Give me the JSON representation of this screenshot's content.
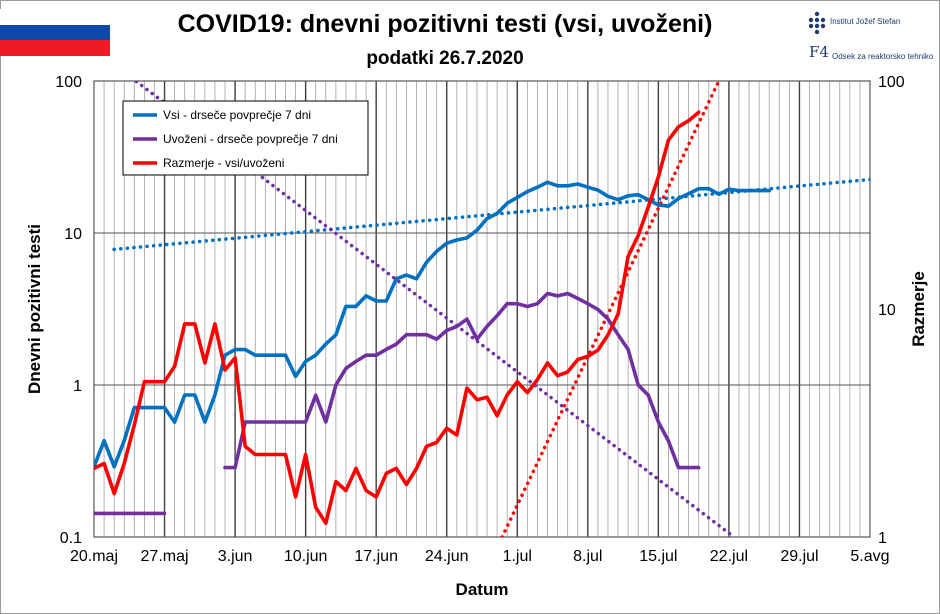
{
  "header": {
    "title": "COVID19: dnevni pozitivni testi (vsi, uvoženi)",
    "subtitle": "podatki 26.7.2020",
    "logo_line1": "Institut Jožef Stefan",
    "logo_line2": "Odsek za reaktorsko tehniko",
    "logo_mark": "F4",
    "flag_colors": [
      "#ffffff",
      "#0d4aa8",
      "#ed1c24"
    ]
  },
  "chart_data": {
    "type": "line",
    "title": "COVID19: dnevni pozitivni testi (vsi, uvoženi)",
    "subtitle": "podatki 26.7.2020",
    "xlabel": "Datum",
    "ylabel": "Dnevni pozitivni testi",
    "y2label": "Razmerje",
    "x_start": "20.maj",
    "x_range_days": [
      0,
      77
    ],
    "y_scale": "log",
    "ylim": [
      0.1,
      100
    ],
    "y2lim": [
      1,
      100
    ],
    "x_ticks": [
      {
        "day": 0,
        "label": "20.maj"
      },
      {
        "day": 7,
        "label": "27.maj"
      },
      {
        "day": 14,
        "label": "3.jun"
      },
      {
        "day": 21,
        "label": "10.jun"
      },
      {
        "day": 28,
        "label": "17.jun"
      },
      {
        "day": 35,
        "label": "24.jun"
      },
      {
        "day": 42,
        "label": "1.jul"
      },
      {
        "day": 49,
        "label": "8.jul"
      },
      {
        "day": 56,
        "label": "15.jul"
      },
      {
        "day": 63,
        "label": "22.jul"
      },
      {
        "day": 70,
        "label": "29.jul"
      },
      {
        "day": 77,
        "label": "5.avg"
      }
    ],
    "y_ticks": [
      {
        "value": 0.1,
        "label": "0.1"
      },
      {
        "value": 1,
        "label": "1"
      },
      {
        "value": 10,
        "label": "10"
      },
      {
        "value": 100,
        "label": "100"
      }
    ],
    "y2_ticks": [
      {
        "value": 1,
        "label": "1"
      },
      {
        "value": 10,
        "label": "10"
      },
      {
        "value": 100,
        "label": "100"
      }
    ],
    "legend": {
      "position": "top-left",
      "entries": [
        "Vsi - drseče povprečje 7 dni",
        "Uvoženi - drseče povprečje 7 dni",
        "Razmerje - vsi/uvoženi"
      ]
    },
    "series": [
      {
        "name": "Vsi - drseče povprečje 7 dni",
        "axis": "left",
        "color": "#0070c0",
        "x": [
          0,
          1,
          2,
          3,
          4,
          5,
          6,
          7,
          8,
          9,
          10,
          11,
          12,
          13,
          14,
          15,
          16,
          17,
          18,
          19,
          20,
          21,
          22,
          23,
          24,
          25,
          26,
          27,
          28,
          29,
          30,
          31,
          32,
          33,
          34,
          35,
          36,
          37,
          38,
          39,
          40,
          41,
          42,
          43,
          44,
          45,
          46,
          47,
          48,
          49,
          50,
          51,
          52,
          53,
          54,
          55,
          56,
          57,
          58,
          59,
          60,
          61,
          62,
          63,
          64,
          65,
          66,
          67
        ],
        "values": [
          0.29,
          0.43,
          0.29,
          0.43,
          0.71,
          0.71,
          0.71,
          0.71,
          0.57,
          0.86,
          0.86,
          0.57,
          0.86,
          1.57,
          1.71,
          1.71,
          1.57,
          1.57,
          1.57,
          1.57,
          1.14,
          1.43,
          1.57,
          1.86,
          2.14,
          3.29,
          3.29,
          3.86,
          3.57,
          3.57,
          5.0,
          5.29,
          5.0,
          6.43,
          7.57,
          8.57,
          9.0,
          9.29,
          10.43,
          12.43,
          13.43,
          15.71,
          17.14,
          18.71,
          20.0,
          21.57,
          20.43,
          20.43,
          21.0,
          20.0,
          19.14,
          17.43,
          16.57,
          17.57,
          17.86,
          16.57,
          15.29,
          15.0,
          16.86,
          18.14,
          19.57,
          19.57,
          18.0,
          19.43,
          19.0,
          19.0,
          19.0,
          19.0
        ]
      },
      {
        "name": "Uvoženi - drseče povprečje 7 dni",
        "axis": "left",
        "color": "#7030a0",
        "segments": [
          {
            "x": [
              0,
              7
            ],
            "values": [
              0.143,
              0.143
            ]
          },
          {
            "x": [
              13,
              14,
              15,
              16,
              17,
              18,
              19,
              20,
              21,
              22,
              23,
              24,
              25,
              26,
              27,
              28,
              29,
              30,
              31,
              32,
              33,
              34,
              35,
              36,
              37,
              38,
              39,
              40,
              41,
              42,
              43,
              44,
              45,
              46,
              47,
              48,
              49,
              50,
              51,
              52,
              53,
              54,
              55,
              56,
              57,
              58,
              59,
              60
            ],
            "values": [
              0.286,
              0.286,
              0.571,
              0.571,
              0.571,
              0.571,
              0.571,
              0.571,
              0.571,
              0.857,
              0.571,
              1.0,
              1.286,
              1.429,
              1.571,
              1.571,
              1.714,
              1.857,
              2.143,
              2.143,
              2.143,
              2.0,
              2.286,
              2.429,
              2.714,
              2.0,
              2.429,
              2.857,
              3.429,
              3.429,
              3.286,
              3.429,
              4.0,
              3.857,
              4.0,
              3.714,
              3.429,
              3.143,
              2.714,
              2.143,
              1.714,
              1.0,
              0.857,
              0.571,
              0.429,
              0.286,
              0.286,
              0.286
            ]
          }
        ]
      },
      {
        "name": "Razmerje - vsi/uvoženi",
        "axis": "right",
        "color": "#ff0000",
        "x": [
          0,
          1,
          2,
          3,
          4,
          5,
          6,
          7,
          8,
          9,
          10,
          11,
          12,
          13,
          14,
          15,
          16,
          17,
          18,
          19,
          20,
          21,
          22,
          23,
          24,
          25,
          26,
          27,
          28,
          29,
          30,
          31,
          32,
          33,
          34,
          35,
          36,
          37,
          38,
          39,
          40,
          41,
          42,
          43,
          44,
          45,
          46,
          47,
          48,
          49,
          50,
          51,
          52,
          53,
          54,
          55,
          56,
          57,
          58,
          59,
          60
        ],
        "values": [
          2.0,
          2.1,
          1.55,
          2.1,
          3.1,
          4.8,
          4.8,
          4.8,
          5.6,
          8.6,
          8.6,
          5.8,
          8.6,
          5.4,
          6.1,
          2.5,
          2.3,
          2.3,
          2.3,
          2.3,
          1.5,
          2.3,
          1.35,
          1.15,
          1.75,
          1.6,
          2.0,
          1.6,
          1.5,
          1.9,
          2.0,
          1.7,
          2.0,
          2.5,
          2.6,
          3.0,
          2.8,
          4.5,
          4.0,
          4.1,
          3.4,
          4.2,
          4.8,
          4.3,
          4.9,
          5.8,
          5.1,
          5.3,
          6.0,
          6.2,
          6.6,
          7.7,
          9.5,
          17,
          21,
          28,
          38,
          55,
          63,
          67,
          73
        ]
      }
    ],
    "trendlines": [
      {
        "name": "trend vsi",
        "axis": "left",
        "color": "#0070c0",
        "x": [
          2,
          77
        ],
        "values": [
          7.8,
          22.5
        ]
      },
      {
        "name": "trend uvoženi",
        "axis": "left",
        "color": "#7030a0",
        "x": [
          -1,
          63.5
        ],
        "values": [
          182,
          0.1
        ]
      },
      {
        "name": "trend razmerje",
        "axis": "right",
        "color": "#ff0000",
        "x": [
          40.5,
          62
        ],
        "values": [
          1,
          100
        ]
      }
    ]
  }
}
